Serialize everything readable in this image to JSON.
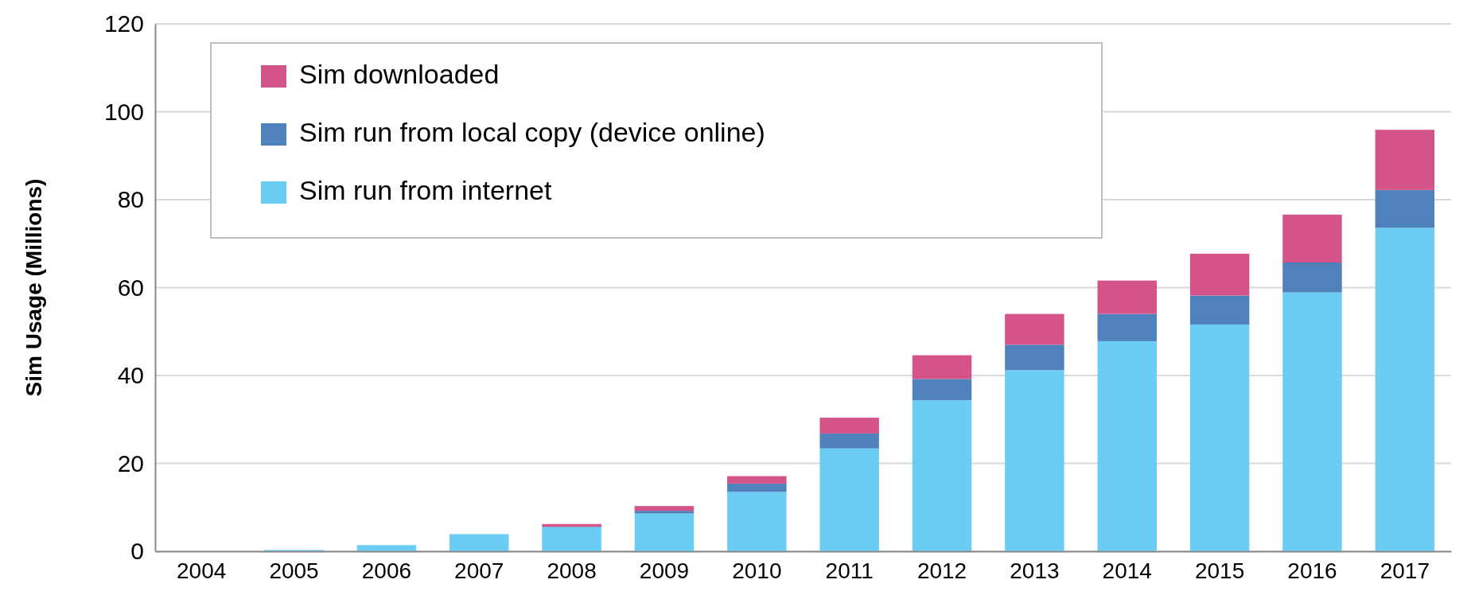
{
  "chart_data": {
    "type": "bar",
    "stacked": true,
    "ylabel": "Sim Usage (Millions)",
    "categories": [
      "2004",
      "2005",
      "2006",
      "2007",
      "2008",
      "2009",
      "2010",
      "2011",
      "2012",
      "2013",
      "2014",
      "2015",
      "2016",
      "2017"
    ],
    "series": [
      {
        "name": "Sim run from internet",
        "color": "#6bcdf3",
        "values": [
          0,
          0.3,
          1.4,
          3.9,
          5.5,
          8.6,
          13.5,
          23.4,
          34.4,
          41.2,
          47.8,
          51.6,
          58.9,
          73.6
        ]
      },
      {
        "name": "Sim run from local copy (device online)",
        "color": "#4f81bd",
        "values": [
          0,
          0,
          0,
          0,
          0.1,
          0.6,
          1.9,
          3.4,
          4.8,
          5.8,
          6.2,
          6.6,
          6.8,
          8.6
        ]
      },
      {
        "name": "Sim downloaded",
        "color": "#d4548a",
        "values": [
          0,
          0,
          0,
          0,
          0.6,
          1.1,
          1.7,
          3.6,
          5.4,
          7.0,
          7.6,
          9.5,
          10.9,
          13.7
        ]
      }
    ],
    "ylim": [
      0,
      120
    ],
    "yticks": [
      0,
      20,
      40,
      60,
      80,
      100,
      120
    ],
    "grid": "y",
    "legend": "top left"
  }
}
